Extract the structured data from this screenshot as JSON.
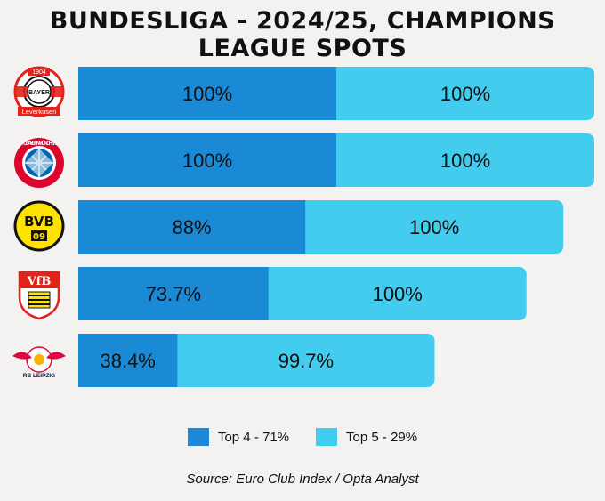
{
  "title": "BUNDESLIGA - 2024/25, CHAMPIONS LEAGUE SPOTS",
  "colors": {
    "top4": "#1a8ad6",
    "top5": "#44ccee",
    "background": "#f3f2f0"
  },
  "chart_data": {
    "type": "bar",
    "orientation": "horizontal",
    "stacked": true,
    "categories": [
      "Bayer Leverkusen",
      "FC Bayern München",
      "Borussia Dortmund",
      "VfB Stuttgart",
      "RB Leipzig"
    ],
    "category_icons": [
      "leverkusen-logo",
      "bayern-logo",
      "dortmund-logo",
      "stuttgart-logo",
      "leipzig-logo"
    ],
    "series": [
      {
        "name": "Top 4 - 71%",
        "values": [
          100,
          100,
          88,
          73.7,
          38.4
        ],
        "labels": [
          "100%",
          "100%",
          "88%",
          "73.7%",
          "38.4%"
        ]
      },
      {
        "name": "Top 5 - 29%",
        "values": [
          100,
          100,
          100,
          100,
          99.7
        ],
        "labels": [
          "100%",
          "100%",
          "100%",
          "100%",
          "99.7%"
        ]
      }
    ],
    "legend_position": "bottom-center",
    "grid": false
  },
  "legend": {
    "top4": "Top 4 - 71%",
    "top5": "Top 5 - 29%"
  },
  "source": "Source: Euro Club Index / Opta Analyst",
  "logos": {
    "leverkusen_year": "1904",
    "leverkusen_text": "Leverkusen",
    "leverkusen_center": "BAYER",
    "bayern_text": "FC BAYERN MÜNCHEN",
    "dortmund_text": "BVB",
    "dortmund_year": "09",
    "stuttgart_text": "VfB",
    "leipzig_text": "RB LEIPZIG"
  }
}
